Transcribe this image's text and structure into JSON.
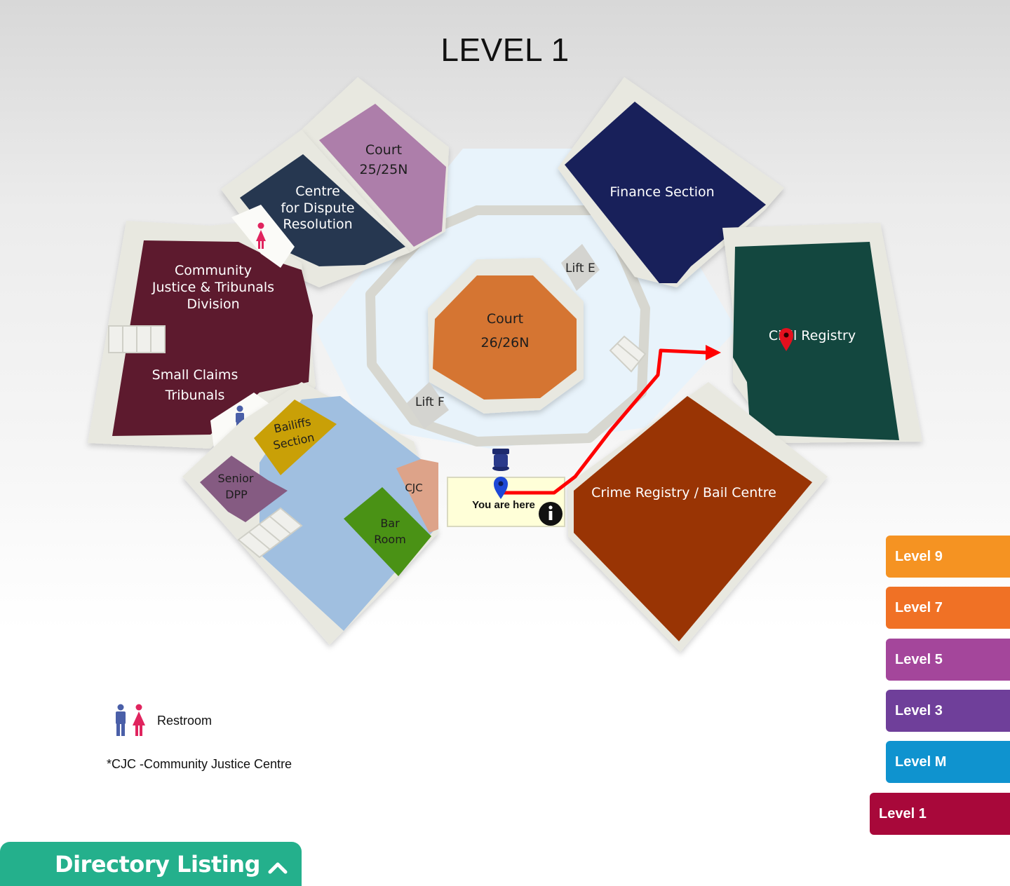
{
  "page": {
    "title": "LEVEL 1"
  },
  "rooms": {
    "court_25": {
      "line1": "Court",
      "line2": "25/25N",
      "color": "#ad7eaa"
    },
    "dispute": {
      "line1": "Centre",
      "line2": "for Dispute",
      "line3": "Resolution",
      "color": "#263750"
    },
    "finance": {
      "label": "Finance Section",
      "color": "#18205a"
    },
    "community": {
      "line1": "Community",
      "line2": "Justice & Tribunals",
      "line3": "Division",
      "color": "#5d1a2e"
    },
    "small_claims": {
      "line1": "Small Claims",
      "line2": "Tribunals"
    },
    "court_26": {
      "line1": "Court",
      "line2": "26/26N",
      "color": "#d57532"
    },
    "civil": {
      "label": "Civil Registry",
      "color": "#13473f"
    },
    "crime": {
      "label": "Crime Registry / Bail Centre",
      "color": "#993404"
    },
    "bailiffs": {
      "line1": "Bailiffs",
      "line2": "Section",
      "color": "#c9a007"
    },
    "senior_dpp": {
      "line1": "Senior",
      "line2": "DPP",
      "color": "#855b82"
    },
    "cjc": {
      "label": "CJC",
      "color": "#dda389"
    },
    "bar_room": {
      "line1": "Bar",
      "line2": "Room",
      "color": "#4a9215"
    },
    "lift_e": {
      "label": "Lift E"
    },
    "lift_f": {
      "label": "Lift F"
    }
  },
  "you_are_here": {
    "label": "You are here",
    "info_icon": "info-icon"
  },
  "legend": {
    "restroom_label": "Restroom",
    "cjc_note": "*CJC -Community Justice Centre",
    "male_color": "#4a5fa8",
    "female_color": "#e0245e"
  },
  "levels": [
    {
      "label": "Level 9",
      "color": "#f59322"
    },
    {
      "label": "Level 7",
      "color": "#f07125"
    },
    {
      "label": "Level 5",
      "color": "#a4469b"
    },
    {
      "label": "Level 3",
      "color": "#6f3f9a"
    },
    {
      "label": "Level M",
      "color": "#0f93cf"
    },
    {
      "label": "Level 1",
      "color": "#a8083a"
    }
  ],
  "directory": {
    "label": "Directory Listing",
    "icon": "chevron-up-icon",
    "color": "#24b08c"
  },
  "route": {
    "color": "#ff0000",
    "start_pin_color": "#1d48d6",
    "end_pin_color": "#e3101e"
  }
}
